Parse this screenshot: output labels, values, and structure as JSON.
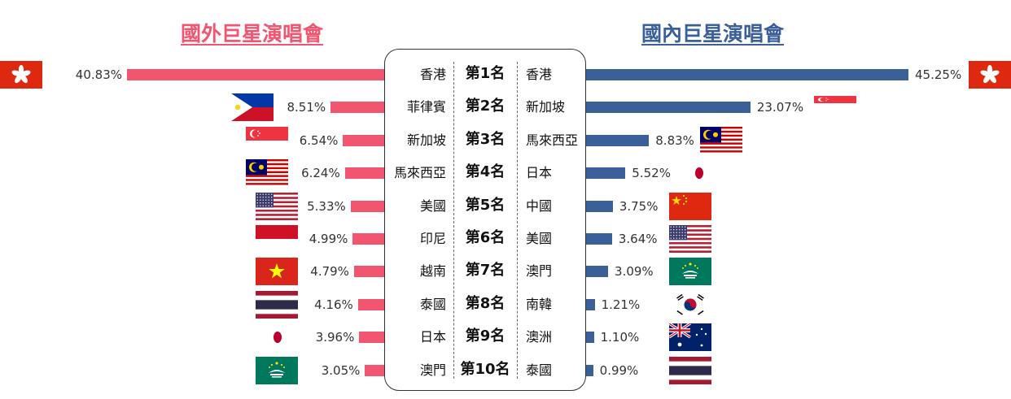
{
  "titles": {
    "left": "國外巨星演唱會",
    "right": "國內巨星演唱會"
  },
  "colors": {
    "left_bar": "#f25570",
    "right_bar": "#3a5f99",
    "left_title": "#f25570",
    "right_title": "#3a5f99"
  },
  "chart_data": {
    "type": "bar",
    "ranks": [
      "第1名",
      "第2名",
      "第3名",
      "第4名",
      "第5名",
      "第6名",
      "第7名",
      "第8名",
      "第9名",
      "第10名"
    ],
    "series": [
      {
        "name": "國外巨星演唱會",
        "side": "left",
        "categories": [
          "香港",
          "菲律賓",
          "新加坡",
          "馬來西亞",
          "美國",
          "印尼",
          "越南",
          "泰國",
          "日本",
          "澳門"
        ],
        "values": [
          40.83,
          8.51,
          6.54,
          6.24,
          5.33,
          4.99,
          4.79,
          4.16,
          3.96,
          3.05
        ],
        "labels": [
          "40.83%",
          "8.51%",
          "6.54%",
          "6.24%",
          "5.33%",
          "4.99%",
          "4.79%",
          "4.16%",
          "3.96%",
          "3.05%"
        ],
        "flags": [
          "hongkong-flag",
          "philippines-flag",
          "singapore-flag",
          "malaysia-flag",
          "usa-flag",
          "indonesia-flag",
          "vietnam-flag",
          "thailand-flag",
          "japan-flag",
          "macau-flag"
        ]
      },
      {
        "name": "國內巨星演唱會",
        "side": "right",
        "categories": [
          "香港",
          "新加坡",
          "馬來西亞",
          "日本",
          "中國",
          "美國",
          "澳門",
          "南韓",
          "澳洲",
          "泰國"
        ],
        "values": [
          45.25,
          23.07,
          8.83,
          5.52,
          3.75,
          3.64,
          3.09,
          1.21,
          1.1,
          0.99
        ],
        "labels": [
          "45.25%",
          "23.07%",
          "8.83%",
          "5.52%",
          "3.75%",
          "3.64%",
          "3.09%",
          "1.21%",
          "1.10%",
          "0.99%"
        ],
        "flags": [
          "hongkong-flag",
          "singapore-flag",
          "malaysia-flag",
          "japan-flag",
          "china-flag",
          "usa-flag",
          "macau-flag",
          "korea-flag",
          "australia-flag",
          "thailand-flag"
        ]
      }
    ]
  }
}
